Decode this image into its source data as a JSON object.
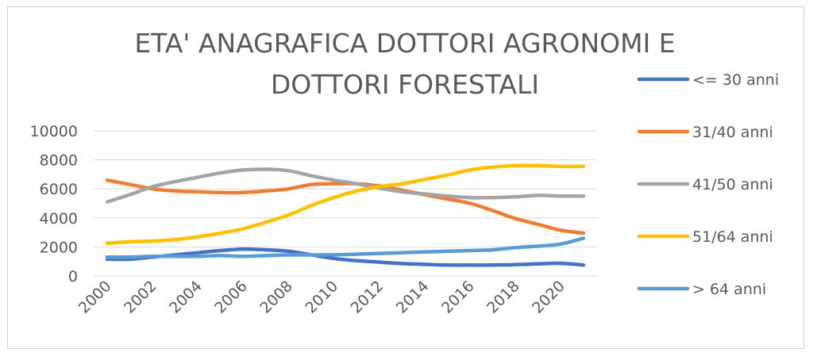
{
  "chart_data": {
    "type": "line",
    "title_lines": [
      "ETA' ANAGRAFICA DOTTORI AGRONOMI E",
      "DOTTORI FORESTALI"
    ],
    "x": [
      2000,
      2001,
      2002,
      2003,
      2004,
      2005,
      2006,
      2007,
      2008,
      2009,
      2010,
      2011,
      2012,
      2013,
      2014,
      2015,
      2016,
      2017,
      2018,
      2019,
      2020,
      2021
    ],
    "x_tick_labels": [
      "2000",
      "2002",
      "2004",
      "2006",
      "2008",
      "2010",
      "2012",
      "2014",
      "2016",
      "2018",
      "2020"
    ],
    "y_tick_labels": [
      "0",
      "2000",
      "4000",
      "6000",
      "8000",
      "10000"
    ],
    "ylim": [
      0,
      10000
    ],
    "grid": true,
    "legend_position": "right",
    "series": [
      {
        "name": "<= 30 anni",
        "color": "#4472C4",
        "values": [
          1150,
          1150,
          1300,
          1450,
          1600,
          1750,
          1850,
          1800,
          1700,
          1450,
          1200,
          1050,
          950,
          850,
          800,
          750,
          750,
          750,
          780,
          830,
          870,
          750
        ]
      },
      {
        "name": "31/40 anni",
        "color": "#ED7D31",
        "values": [
          6600,
          6300,
          6000,
          5850,
          5800,
          5750,
          5750,
          5850,
          6000,
          6300,
          6350,
          6350,
          6200,
          5900,
          5600,
          5300,
          5000,
          4500,
          3950,
          3550,
          3150,
          2950
        ]
      },
      {
        "name": "41/50 anni",
        "color": "#A5A5A5",
        "values": [
          5100,
          5600,
          6150,
          6500,
          6800,
          7100,
          7300,
          7350,
          7250,
          6900,
          6600,
          6350,
          6050,
          5800,
          5650,
          5500,
          5400,
          5400,
          5450,
          5550,
          5500,
          5500
        ]
      },
      {
        "name": "51/64 anni",
        "color": "#FFC000",
        "values": [
          2250,
          2350,
          2400,
          2500,
          2700,
          2950,
          3250,
          3700,
          4200,
          4850,
          5400,
          5850,
          6150,
          6350,
          6650,
          6950,
          7300,
          7500,
          7600,
          7600,
          7550,
          7550
        ]
      },
      {
        "name": "> 64 anni",
        "color": "#5B9BD5",
        "values": [
          1300,
          1300,
          1350,
          1350,
          1350,
          1400,
          1350,
          1400,
          1450,
          1450,
          1450,
          1500,
          1550,
          1600,
          1650,
          1700,
          1750,
          1800,
          1950,
          2050,
          2200,
          2600
        ]
      }
    ]
  }
}
